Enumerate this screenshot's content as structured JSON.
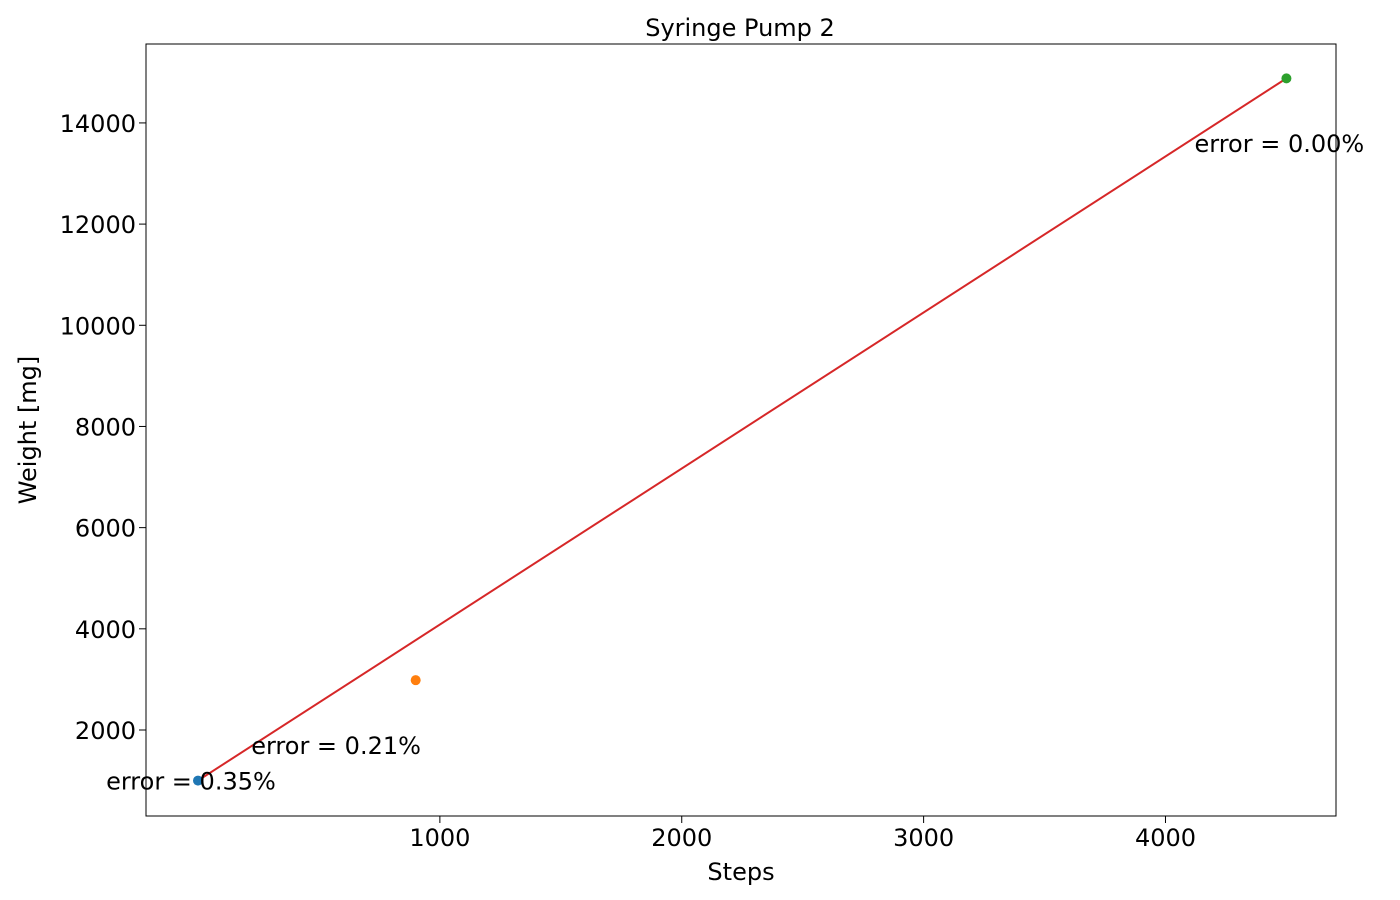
{
  "chart_data": {
    "type": "scatter",
    "title": "Syringe Pump 2",
    "xlabel": "Steps",
    "ylabel": "Weight [mg]",
    "xlim": [
      -215,
      4705
    ],
    "ylim": [
      300,
      15560
    ],
    "xticks": [
      1000,
      2000,
      3000,
      4000
    ],
    "yticks": [
      2000,
      4000,
      6000,
      8000,
      10000,
      12000,
      14000
    ],
    "points": [
      {
        "x": 0,
        "y": 1000,
        "color": "#1f77b4"
      },
      {
        "x": 900,
        "y": 2985,
        "color": "#ff7f0e"
      },
      {
        "x": 4500,
        "y": 14880,
        "color": "#2ca02c"
      }
    ],
    "fit_line": {
      "color": "#d62728",
      "x": [
        0,
        4500
      ],
      "y": [
        1000,
        14880
      ]
    },
    "annotations": [
      {
        "text": "error = 0.35%",
        "x": -380,
        "y": 1000
      },
      {
        "text": "error = 0.21%",
        "x": 220,
        "y": 1700
      },
      {
        "text": "error = 0.00%",
        "x": 4120,
        "y": 13600
      }
    ],
    "grid": false,
    "legend": "none"
  }
}
